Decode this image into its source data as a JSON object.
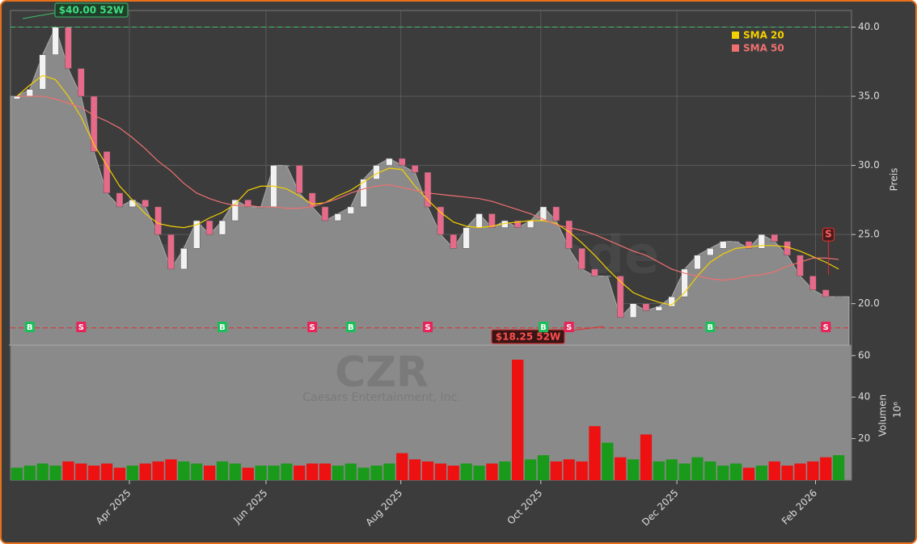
{
  "chart_data": {
    "type": "candlestick",
    "watermark": "forexsignale.trade",
    "symbol": "CZR",
    "company": "Caesars Entertainment, Inc.",
    "ylabel": "Preis",
    "x": [
      0,
      1,
      2,
      3,
      4,
      5,
      6,
      7,
      8,
      9,
      10,
      11,
      12,
      13,
      14,
      15,
      16,
      17,
      18,
      19,
      20,
      21,
      22,
      23,
      24,
      25,
      26,
      27,
      28,
      29,
      30,
      31,
      32,
      33,
      34,
      35,
      36,
      37,
      38,
      39,
      40,
      41,
      42,
      43,
      44,
      45,
      46,
      47,
      48,
      49,
      50,
      51,
      52,
      53,
      54,
      55,
      56,
      57,
      58,
      59,
      60,
      61,
      62,
      63,
      64
    ],
    "xlim": [
      -0.5,
      65
    ],
    "xticks": [
      {
        "value": 8.76,
        "label": "Apr 2025"
      },
      {
        "value": 19.4,
        "label": "Jun 2025"
      },
      {
        "value": 29.9,
        "label": "Aug 2025"
      },
      {
        "value": 40.8,
        "label": "Oct 2025"
      },
      {
        "value": 51.4,
        "label": "Dec 2025"
      },
      {
        "value": 62.2,
        "label": "Feb 2026"
      }
    ],
    "ylim": [
      17.0,
      41.2
    ],
    "yticks": [
      {
        "value": 20,
        "label": "20.0"
      },
      {
        "value": 25,
        "label": "25.0"
      },
      {
        "value": 30,
        "label": "30.0"
      },
      {
        "value": 35,
        "label": "35.0"
      },
      {
        "value": 40,
        "label": "40.0"
      }
    ],
    "grid": true,
    "open": [
      34.8,
      35,
      35.5,
      38,
      40,
      37,
      35,
      31,
      28,
      27,
      27.5,
      27,
      25,
      22.5,
      24,
      26,
      25,
      26,
      27.5,
      27,
      27,
      30,
      30,
      28,
      27,
      26,
      26.5,
      27,
      29,
      30,
      30.5,
      30,
      29.5,
      27,
      25,
      24,
      25.5,
      26.5,
      25.5,
      26,
      25.5,
      26,
      27,
      26,
      24,
      22.5,
      22,
      22,
      19,
      20,
      19.5,
      19.8,
      20.5,
      22.5,
      23.5,
      24,
      24.5,
      24.5,
      24,
      25,
      24.5,
      23.5,
      22,
      21,
      20.5
    ],
    "close": [
      35,
      35.5,
      38,
      40,
      37,
      35,
      31,
      28,
      27,
      27.5,
      27,
      25,
      22.5,
      24,
      26,
      25,
      26,
      27.5,
      27,
      27,
      30,
      30,
      28,
      27,
      26,
      26.5,
      27,
      29,
      30,
      30.5,
      30,
      29.5,
      27,
      25,
      24,
      25.5,
      26.5,
      25.5,
      26,
      25.5,
      26,
      27,
      26,
      24,
      22.5,
      22,
      22,
      19,
      20,
      19.5,
      19.8,
      20.5,
      22.5,
      23.5,
      24,
      24.5,
      24.5,
      24,
      25,
      24.5,
      23.5,
      22,
      21,
      20.5,
      20.5
    ],
    "series": [
      {
        "name": "SMA 20",
        "color": "#f5d000",
        "values": [
          35,
          35.8,
          36.5,
          36.2,
          35,
          33.5,
          31.5,
          30,
          28.5,
          27.5,
          26.5,
          25.8,
          25.6,
          25.5,
          25.7,
          26.2,
          26.6,
          27.2,
          28.2,
          28.5,
          28.5,
          28.3,
          27.8,
          27.2,
          27.3,
          27.8,
          28.2,
          28.8,
          29.4,
          29.8,
          29.7,
          28.5,
          27.5,
          26.6,
          25.9,
          25.6,
          25.5,
          25.6,
          25.8,
          25.9,
          26,
          26,
          25.8,
          25.2,
          24.4,
          23.5,
          22.5,
          21.6,
          20.8,
          20.4,
          20.1,
          19.9,
          20.8,
          22,
          23,
          23.6,
          24,
          24.1,
          24.2,
          24.2,
          24.1,
          23.8,
          23.4,
          23,
          22.5
        ]
      },
      {
        "name": "SMA 50",
        "color": "#f07070",
        "values": [
          35,
          35,
          35,
          34.8,
          34.5,
          34.2,
          33.6,
          33.2,
          32.7,
          32,
          31.2,
          30.3,
          29.6,
          28.7,
          28,
          27.6,
          27.3,
          27.1,
          27.1,
          27,
          27,
          26.9,
          26.9,
          27,
          27.3,
          27.6,
          28,
          28.3,
          28.5,
          28.6,
          28.4,
          28.2,
          28,
          27.9,
          27.8,
          27.7,
          27.6,
          27.4,
          27.1,
          26.8,
          26.5,
          26.1,
          25.7,
          25.5,
          25.3,
          25,
          24.6,
          24.2,
          23.8,
          23.5,
          23,
          22.5,
          22.2,
          22,
          21.8,
          21.7,
          21.8,
          22,
          22.1,
          22.3,
          22.7,
          23,
          23.3,
          23.3,
          23.2
        ]
      }
    ],
    "high_line": 40,
    "high_label": "$40.00 52W",
    "low_line": 18.25,
    "low_label": "$18.25 52W",
    "signals": [
      {
        "label": "B",
        "x": 1
      },
      {
        "label": "S",
        "x": 5
      },
      {
        "label": "B",
        "x": 16
      },
      {
        "label": "S",
        "x": 23
      },
      {
        "label": "B",
        "x": 26
      },
      {
        "label": "S",
        "x": 32
      },
      {
        "label": "B",
        "x": 41
      },
      {
        "label": "S",
        "x": 43
      },
      {
        "label": "B",
        "x": 54
      },
      {
        "label": "S",
        "x": 63
      }
    ],
    "last_signal": {
      "label": "S",
      "x": 63.2,
      "y": 25
    },
    "volume": {
      "ylabel": "Volumen",
      "unit": "10⁶",
      "ylim": [
        0,
        65
      ],
      "yticks": [
        20,
        40,
        60
      ],
      "values": [
        6,
        7,
        8,
        7,
        9,
        8,
        7,
        8,
        6,
        7,
        8,
        9,
        10,
        9,
        8,
        7,
        9,
        8,
        6,
        7,
        7,
        8,
        7,
        8,
        8,
        7,
        8,
        6,
        7,
        8,
        13,
        10,
        9,
        8,
        7,
        8,
        7,
        8,
        9,
        58,
        10,
        12,
        9,
        10,
        9,
        26,
        18,
        11,
        10,
        22,
        9,
        10,
        8,
        11,
        9,
        7,
        8,
        6,
        7,
        9,
        7,
        8,
        9,
        11,
        12
      ]
    }
  }
}
